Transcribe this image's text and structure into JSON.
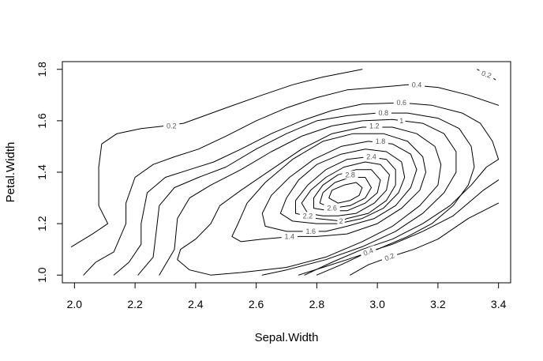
{
  "chart_data": {
    "type": "contour",
    "title": "",
    "xlabel": "Sepal.Width",
    "ylabel": "Petal.Width",
    "xlim": [
      1.96,
      3.44
    ],
    "ylim": [
      0.97,
      1.83
    ],
    "xticks": [
      "2.0",
      "2.2",
      "2.4",
      "2.6",
      "2.8",
      "3.0",
      "3.2",
      "3.4"
    ],
    "yticks": [
      "1.0",
      "1.2",
      "1.4",
      "1.6",
      "1.8"
    ],
    "grid": false,
    "legend": "none",
    "line_color": "#000000",
    "label_color": "#555555",
    "levels": [
      0.2,
      0.4,
      0.6,
      0.8,
      1.0,
      1.2,
      1.4,
      1.6,
      1.8,
      2.0,
      2.2,
      2.4,
      2.6,
      2.8
    ],
    "labels": [
      {
        "text": "0.2",
        "x": 2.32,
        "y": 1.58,
        "rot": 0
      },
      {
        "text": "0.2",
        "x": 3.36,
        "y": 1.78,
        "rot": 20
      },
      {
        "text": "0.2",
        "x": 3.04,
        "y": 1.07,
        "rot": -22
      },
      {
        "text": "0.4",
        "x": 3.13,
        "y": 1.74,
        "rot": 0
      },
      {
        "text": "0.4",
        "x": 2.97,
        "y": 1.09,
        "rot": -22
      },
      {
        "text": "0.6",
        "x": 3.08,
        "y": 1.67,
        "rot": 0
      },
      {
        "text": "0.8",
        "x": 3.02,
        "y": 1.63,
        "rot": 0
      },
      {
        "text": "1",
        "x": 3.08,
        "y": 1.6,
        "rot": 0
      },
      {
        "text": "1.2",
        "x": 2.99,
        "y": 1.58,
        "rot": 0
      },
      {
        "text": "1.4",
        "x": 2.71,
        "y": 1.15,
        "rot": 0
      },
      {
        "text": "1.6",
        "x": 2.78,
        "y": 1.17,
        "rot": 0
      },
      {
        "text": "1.8",
        "x": 3.01,
        "y": 1.52,
        "rot": 0
      },
      {
        "text": "2",
        "x": 2.88,
        "y": 1.21,
        "rot": 0
      },
      {
        "text": "2.2",
        "x": 2.77,
        "y": 1.23,
        "rot": 0
      },
      {
        "text": "2.4",
        "x": 2.98,
        "y": 1.46,
        "rot": 0
      },
      {
        "text": "2.6",
        "x": 2.85,
        "y": 1.26,
        "rot": 0
      },
      {
        "text": "2.8",
        "x": 2.91,
        "y": 1.39,
        "rot": 0
      }
    ],
    "curves": [
      {
        "level": 0.2,
        "points": [
          [
            1.99,
            1.11
          ],
          [
            2.06,
            1.16
          ],
          [
            2.11,
            1.2
          ],
          [
            2.08,
            1.27
          ],
          [
            2.08,
            1.42
          ],
          [
            2.09,
            1.51
          ],
          [
            2.14,
            1.55
          ],
          [
            2.22,
            1.57
          ],
          [
            2.3,
            1.58
          ],
          [
            2.36,
            1.59
          ],
          [
            2.5,
            1.65
          ],
          [
            2.62,
            1.7
          ],
          [
            2.72,
            1.74
          ],
          [
            2.82,
            1.77
          ],
          [
            2.95,
            1.8
          ]
        ]
      },
      {
        "level": 0.2,
        "points": [
          [
            3.33,
            1.8
          ],
          [
            3.36,
            1.78
          ],
          [
            3.39,
            1.76
          ]
        ]
      },
      {
        "level": 0.2,
        "points": [
          [
            2.91,
            1.0
          ],
          [
            2.97,
            1.04
          ],
          [
            3.04,
            1.07
          ],
          [
            3.12,
            1.1
          ],
          [
            3.2,
            1.14
          ],
          [
            3.3,
            1.22
          ],
          [
            3.4,
            1.28
          ]
        ]
      },
      {
        "level": 0.4,
        "points": [
          [
            2.03,
            1.0
          ],
          [
            2.07,
            1.05
          ],
          [
            2.13,
            1.09
          ],
          [
            2.17,
            1.2
          ],
          [
            2.17,
            1.28
          ],
          [
            2.2,
            1.38
          ],
          [
            2.26,
            1.43
          ],
          [
            2.33,
            1.46
          ],
          [
            2.41,
            1.49
          ],
          [
            2.5,
            1.54
          ],
          [
            2.6,
            1.6
          ],
          [
            2.7,
            1.65
          ],
          [
            2.8,
            1.69
          ],
          [
            2.9,
            1.72
          ],
          [
            3.0,
            1.73
          ],
          [
            3.1,
            1.74
          ],
          [
            3.2,
            1.73
          ],
          [
            3.3,
            1.7
          ],
          [
            3.4,
            1.66
          ]
        ]
      },
      {
        "level": 0.4,
        "points": [
          [
            2.8,
            1.0
          ],
          [
            2.88,
            1.04
          ],
          [
            2.97,
            1.09
          ],
          [
            3.05,
            1.12
          ],
          [
            3.15,
            1.17
          ],
          [
            3.25,
            1.23
          ],
          [
            3.35,
            1.33
          ],
          [
            3.4,
            1.37
          ]
        ]
      },
      {
        "level": 0.6,
        "points": [
          [
            2.13,
            1.0
          ],
          [
            2.18,
            1.05
          ],
          [
            2.22,
            1.12
          ],
          [
            2.22,
            1.2
          ],
          [
            2.24,
            1.32
          ],
          [
            2.3,
            1.38
          ],
          [
            2.38,
            1.41
          ],
          [
            2.46,
            1.44
          ],
          [
            2.55,
            1.49
          ],
          [
            2.65,
            1.55
          ],
          [
            2.75,
            1.6
          ],
          [
            2.85,
            1.64
          ],
          [
            2.95,
            1.665
          ],
          [
            3.08,
            1.67
          ],
          [
            3.18,
            1.66
          ],
          [
            3.28,
            1.63
          ],
          [
            3.34,
            1.59
          ],
          [
            3.38,
            1.52
          ],
          [
            3.4,
            1.45
          ]
        ]
      },
      {
        "level": 0.6,
        "points": [
          [
            2.76,
            1.0
          ],
          [
            2.85,
            1.05
          ],
          [
            2.95,
            1.1
          ],
          [
            3.05,
            1.14
          ],
          [
            3.15,
            1.2
          ],
          [
            3.24,
            1.27
          ],
          [
            3.31,
            1.35
          ],
          [
            3.36,
            1.42
          ],
          [
            3.4,
            1.45
          ]
        ]
      },
      {
        "level": 0.8,
        "points": [
          [
            2.21,
            1.0
          ],
          [
            2.26,
            1.07
          ],
          [
            2.27,
            1.17
          ],
          [
            2.28,
            1.27
          ],
          [
            2.33,
            1.34
          ],
          [
            2.41,
            1.38
          ],
          [
            2.5,
            1.42
          ],
          [
            2.6,
            1.49
          ],
          [
            2.7,
            1.55
          ],
          [
            2.8,
            1.6
          ],
          [
            2.9,
            1.62
          ],
          [
            3.0,
            1.63
          ],
          [
            3.1,
            1.63
          ],
          [
            3.2,
            1.61
          ],
          [
            3.27,
            1.57
          ],
          [
            3.31,
            1.5
          ],
          [
            3.32,
            1.42
          ],
          [
            3.3,
            1.35
          ],
          [
            3.25,
            1.27
          ],
          [
            3.18,
            1.2
          ],
          [
            3.1,
            1.15
          ],
          [
            3.0,
            1.1
          ],
          [
            2.9,
            1.06
          ],
          [
            2.82,
            1.03
          ],
          [
            2.74,
            1.0
          ]
        ]
      },
      {
        "level": 1.0,
        "points": [
          [
            2.28,
            1.0
          ],
          [
            2.33,
            1.1
          ],
          [
            2.34,
            1.22
          ],
          [
            2.38,
            1.3
          ],
          [
            2.45,
            1.35
          ],
          [
            2.55,
            1.41
          ],
          [
            2.65,
            1.48
          ],
          [
            2.75,
            1.54
          ],
          [
            2.85,
            1.58
          ],
          [
            2.95,
            1.6
          ],
          [
            3.05,
            1.605
          ],
          [
            3.15,
            1.59
          ],
          [
            3.22,
            1.55
          ],
          [
            3.26,
            1.48
          ],
          [
            3.26,
            1.4
          ],
          [
            3.22,
            1.32
          ],
          [
            3.15,
            1.24
          ],
          [
            3.06,
            1.17
          ],
          [
            2.95,
            1.11
          ],
          [
            2.83,
            1.06
          ],
          [
            2.7,
            1.02
          ],
          [
            2.62,
            1.0
          ]
        ]
      },
      {
        "level": 1.2,
        "points": [
          [
            2.45,
            1.0
          ],
          [
            2.38,
            1.02
          ],
          [
            2.34,
            1.06
          ],
          [
            2.35,
            1.1
          ],
          [
            2.4,
            1.14
          ],
          [
            2.45,
            1.2
          ],
          [
            2.48,
            1.27
          ],
          [
            2.55,
            1.33
          ],
          [
            2.65,
            1.41
          ],
          [
            2.75,
            1.49
          ],
          [
            2.85,
            1.55
          ],
          [
            2.95,
            1.575
          ],
          [
            3.05,
            1.575
          ],
          [
            3.13,
            1.55
          ],
          [
            3.19,
            1.5
          ],
          [
            3.21,
            1.43
          ],
          [
            3.2,
            1.35
          ],
          [
            3.14,
            1.27
          ],
          [
            3.05,
            1.19
          ],
          [
            2.95,
            1.13
          ],
          [
            2.83,
            1.07
          ],
          [
            2.7,
            1.03
          ],
          [
            2.55,
            1.01
          ],
          [
            2.45,
            1.0
          ]
        ]
      },
      {
        "level": 1.4,
        "points": [
          [
            2.72,
            1.15
          ],
          [
            2.62,
            1.14
          ],
          [
            2.55,
            1.13
          ],
          [
            2.52,
            1.15
          ],
          [
            2.54,
            1.2
          ],
          [
            2.57,
            1.28
          ],
          [
            2.63,
            1.36
          ],
          [
            2.72,
            1.45
          ],
          [
            2.82,
            1.52
          ],
          [
            2.92,
            1.55
          ],
          [
            3.02,
            1.55
          ],
          [
            3.1,
            1.52
          ],
          [
            3.15,
            1.46
          ],
          [
            3.16,
            1.4
          ],
          [
            3.14,
            1.33
          ],
          [
            3.08,
            1.26
          ],
          [
            3.0,
            1.2
          ],
          [
            2.9,
            1.16
          ],
          [
            2.8,
            1.15
          ],
          [
            2.72,
            1.15
          ]
        ]
      },
      {
        "level": 1.6,
        "points": [
          [
            2.78,
            1.17
          ],
          [
            2.7,
            1.17
          ],
          [
            2.63,
            1.19
          ],
          [
            2.62,
            1.24
          ],
          [
            2.65,
            1.31
          ],
          [
            2.71,
            1.38
          ],
          [
            2.79,
            1.45
          ],
          [
            2.88,
            1.5
          ],
          [
            2.97,
            1.52
          ],
          [
            3.05,
            1.51
          ],
          [
            3.11,
            1.47
          ],
          [
            3.13,
            1.41
          ],
          [
            3.11,
            1.34
          ],
          [
            3.06,
            1.27
          ],
          [
            2.99,
            1.22
          ],
          [
            2.9,
            1.19
          ],
          [
            2.83,
            1.17
          ],
          [
            2.78,
            1.17
          ]
        ]
      },
      {
        "level": 1.8,
        "points": [
          [
            2.8,
            1.2
          ],
          [
            2.72,
            1.21
          ],
          [
            2.68,
            1.24
          ],
          [
            2.7,
            1.3
          ],
          [
            2.74,
            1.37
          ],
          [
            2.8,
            1.43
          ],
          [
            2.88,
            1.47
          ],
          [
            2.96,
            1.49
          ],
          [
            3.03,
            1.48
          ],
          [
            3.08,
            1.44
          ],
          [
            3.09,
            1.38
          ],
          [
            3.07,
            1.32
          ],
          [
            3.02,
            1.26
          ],
          [
            2.95,
            1.22
          ],
          [
            2.87,
            1.2
          ],
          [
            2.8,
            1.2
          ]
        ]
      },
      {
        "level": 2.0,
        "points": [
          [
            2.88,
            1.21
          ],
          [
            2.8,
            1.22
          ],
          [
            2.73,
            1.24
          ],
          [
            2.73,
            1.29
          ],
          [
            2.77,
            1.35
          ],
          [
            2.83,
            1.41
          ],
          [
            2.9,
            1.45
          ],
          [
            2.97,
            1.46
          ],
          [
            3.03,
            1.45
          ],
          [
            3.06,
            1.41
          ],
          [
            3.06,
            1.35
          ],
          [
            3.03,
            1.29
          ],
          [
            2.97,
            1.24
          ],
          [
            2.9,
            1.22
          ],
          [
            2.88,
            1.21
          ]
        ]
      },
      {
        "level": 2.2,
        "points": [
          [
            2.82,
            1.23
          ],
          [
            2.77,
            1.24
          ],
          [
            2.75,
            1.28
          ],
          [
            2.78,
            1.33
          ],
          [
            2.83,
            1.38
          ],
          [
            2.89,
            1.42
          ],
          [
            2.96,
            1.44
          ],
          [
            3.01,
            1.43
          ],
          [
            3.04,
            1.39
          ],
          [
            3.03,
            1.33
          ],
          [
            2.99,
            1.28
          ],
          [
            2.93,
            1.24
          ],
          [
            2.87,
            1.23
          ],
          [
            2.82,
            1.23
          ]
        ]
      },
      {
        "level": 2.4,
        "points": [
          [
            2.84,
            1.25
          ],
          [
            2.79,
            1.26
          ],
          [
            2.79,
            1.3
          ],
          [
            2.82,
            1.35
          ],
          [
            2.87,
            1.39
          ],
          [
            2.93,
            1.41
          ],
          [
            2.98,
            1.41
          ],
          [
            3.01,
            1.37
          ],
          [
            3.0,
            1.32
          ],
          [
            2.96,
            1.28
          ],
          [
            2.9,
            1.25
          ],
          [
            2.84,
            1.25
          ]
        ]
      },
      {
        "level": 2.6,
        "points": [
          [
            2.85,
            1.26
          ],
          [
            2.81,
            1.28
          ],
          [
            2.82,
            1.32
          ],
          [
            2.86,
            1.36
          ],
          [
            2.91,
            1.38
          ],
          [
            2.96,
            1.38
          ],
          [
            2.98,
            1.34
          ],
          [
            2.96,
            1.3
          ],
          [
            2.91,
            1.27
          ],
          [
            2.85,
            1.26
          ]
        ]
      },
      {
        "level": 2.8,
        "points": [
          [
            2.87,
            1.28
          ],
          [
            2.84,
            1.3
          ],
          [
            2.85,
            1.33
          ],
          [
            2.89,
            1.35
          ],
          [
            2.93,
            1.36
          ],
          [
            2.95,
            1.34
          ],
          [
            2.94,
            1.31
          ],
          [
            2.91,
            1.29
          ],
          [
            2.87,
            1.28
          ]
        ]
      }
    ]
  }
}
